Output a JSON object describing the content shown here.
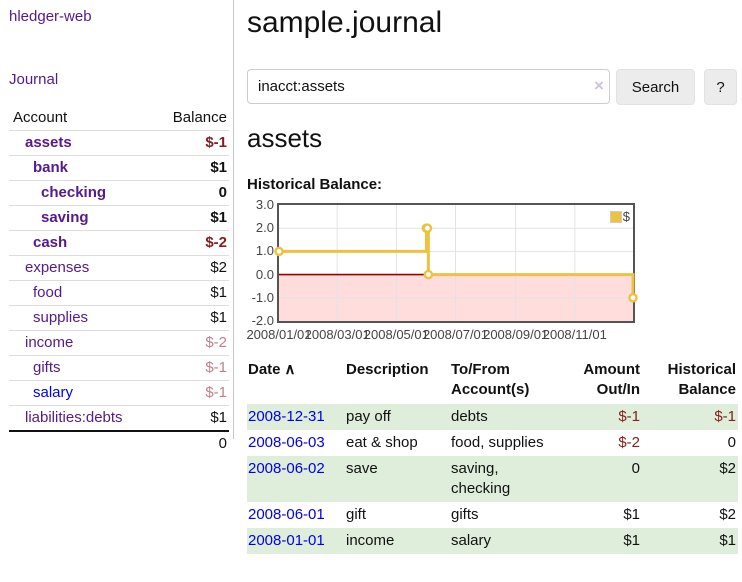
{
  "colors": {
    "accent_purple": "#551A8B",
    "link_blue": "#0000EE",
    "negative_strong": "#861c1c",
    "negative_soft": "#c2808a",
    "row_stripe_green": "#dfeeda",
    "chart_line": "#edc240",
    "chart_negative_fill": "#ffdddd",
    "chart_zero_line": "#990000"
  },
  "sidebar": {
    "brand": "hledger-web",
    "journal_link": "Journal",
    "accounts_table": {
      "col_account": "Account",
      "col_balance": "Balance",
      "rows": [
        {
          "name": "assets",
          "balance": "$-1",
          "level": 1,
          "emphasis": true,
          "balance_tone": "negative-strong",
          "link_tone": "visited"
        },
        {
          "name": "bank",
          "balance": "$1",
          "level": 2,
          "emphasis": true,
          "balance_tone": "normal",
          "link_tone": "visited"
        },
        {
          "name": "checking",
          "balance": "0",
          "level": 3,
          "emphasis": true,
          "balance_tone": "normal",
          "link_tone": "visited"
        },
        {
          "name": "saving",
          "balance": "$1",
          "level": 3,
          "emphasis": true,
          "balance_tone": "normal",
          "link_tone": "visited"
        },
        {
          "name": "cash",
          "balance": "$-2",
          "level": 2,
          "emphasis": true,
          "balance_tone": "negative-strong",
          "link_tone": "visited"
        },
        {
          "name": "expenses",
          "balance": "$2",
          "level": 1,
          "emphasis": false,
          "balance_tone": "normal",
          "link_tone": "visited"
        },
        {
          "name": "food",
          "balance": "$1",
          "level": 2,
          "emphasis": false,
          "balance_tone": "normal",
          "link_tone": "visited"
        },
        {
          "name": "supplies",
          "balance": "$1",
          "level": 2,
          "emphasis": false,
          "balance_tone": "normal",
          "link_tone": "visited"
        },
        {
          "name": "income",
          "balance": "$-2",
          "level": 1,
          "emphasis": false,
          "balance_tone": "negative-soft",
          "link_tone": "visited"
        },
        {
          "name": "gifts",
          "balance": "$-1",
          "level": 2,
          "emphasis": false,
          "balance_tone": "negative-soft",
          "link_tone": "visited"
        },
        {
          "name": "salary",
          "balance": "$-1",
          "level": 2,
          "emphasis": false,
          "balance_tone": "negative-soft",
          "link_tone": "unvisited"
        },
        {
          "name": "liabilities:debts",
          "balance": "$1",
          "level": 1,
          "emphasis": false,
          "balance_tone": "normal",
          "link_tone": "visited"
        }
      ],
      "total": "0"
    }
  },
  "header": {
    "title": "sample.journal"
  },
  "search": {
    "value": "inacct:assets",
    "clear_icon": "×",
    "search_button": "Search",
    "help_button": "?"
  },
  "account_view": {
    "heading": "assets",
    "chart_label": "Historical Balance:"
  },
  "chart_data": {
    "type": "line",
    "step": true,
    "title": "Historical Balance:",
    "series": [
      {
        "name": "$",
        "points": [
          [
            "2008-01-01",
            1
          ],
          [
            "2008-06-01",
            2
          ],
          [
            "2008-06-02",
            2
          ],
          [
            "2008-06-03",
            0
          ],
          [
            "2008-12-31",
            -1
          ]
        ]
      }
    ],
    "x_range": [
      "2008-01-01",
      "2008-12-31"
    ],
    "ylim": [
      -2,
      3
    ],
    "yticks": [
      {
        "v": 3,
        "label": "3.0"
      },
      {
        "v": 2,
        "label": "2.0"
      },
      {
        "v": 1,
        "label": "1.0"
      },
      {
        "v": 0,
        "label": "0.0"
      },
      {
        "v": -1,
        "label": "-1.0"
      },
      {
        "v": -2,
        "label": "-2.0"
      }
    ],
    "xticks": [
      {
        "date": "2008-01-01",
        "label": "2008/01/01"
      },
      {
        "date": "2008-03-01",
        "label": "2008/03/01"
      },
      {
        "date": "2008-05-01",
        "label": "2008/05/01"
      },
      {
        "date": "2008-07-01",
        "label": "2008/07/01"
      },
      {
        "date": "2008-09-01",
        "label": "2008/09/01"
      },
      {
        "date": "2008-11-01",
        "label": "2008/11/01"
      }
    ],
    "legend": {
      "label": "$",
      "position": "top-right"
    },
    "grid": true,
    "line_color": "#edc240",
    "negative_fill": "#ffdddd",
    "zero_line_color": "#990000"
  },
  "register": {
    "headers": {
      "date": "Date",
      "sort_ascending_icon": "∧",
      "description": "Description",
      "accounts": "To/From Account(s)",
      "amount": "Amount Out/In",
      "balance": "Historical Balance"
    },
    "rows": [
      {
        "date": "2008-12-31",
        "description": "pay off",
        "accounts": "debts",
        "amount": "$-1",
        "amount_tone": "negative",
        "balance": "$-1",
        "balance_tone": "negative"
      },
      {
        "date": "2008-06-03",
        "description": "eat & shop",
        "accounts": "food, supplies",
        "amount": "$-2",
        "amount_tone": "negative",
        "balance": "0",
        "balance_tone": "normal"
      },
      {
        "date": "2008-06-02",
        "description": "save",
        "accounts": "saving, checking",
        "amount": "0",
        "amount_tone": "normal",
        "balance": "$2",
        "balance_tone": "normal"
      },
      {
        "date": "2008-06-01",
        "description": "gift",
        "accounts": "gifts",
        "amount": "$1",
        "amount_tone": "normal",
        "balance": "$2",
        "balance_tone": "normal"
      },
      {
        "date": "2008-01-01",
        "description": "income",
        "accounts": "salary",
        "amount": "$1",
        "amount_tone": "normal",
        "balance": "$1",
        "balance_tone": "normal"
      }
    ]
  }
}
